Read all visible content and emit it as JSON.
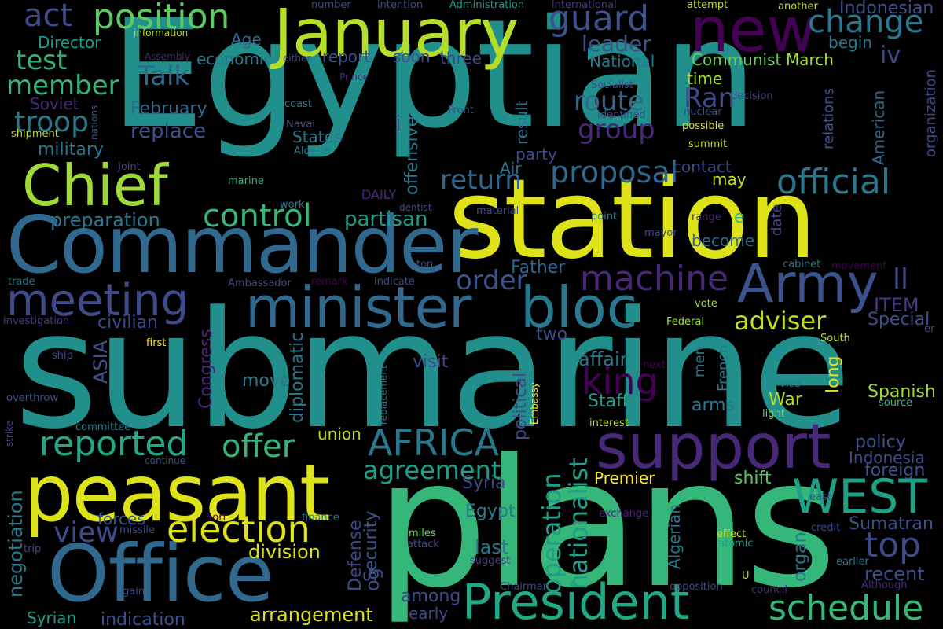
{
  "palette": {
    "background": "#000000",
    "teal": "#21908d",
    "blue": "#31688e",
    "indigo": "#443983",
    "purple": "#440154",
    "green": "#35b779",
    "lime": "#90d743",
    "yellow": "#fde725"
  },
  "words": [
    {
      "text": "Egyptian",
      "color": "#21908d"
    },
    {
      "text": "submarine",
      "color": "#21908d"
    },
    {
      "text": "plans",
      "color": "#35b779"
    },
    {
      "text": "station",
      "color": "#dde318"
    },
    {
      "text": "Commander",
      "color": "#31688e"
    },
    {
      "text": "Office",
      "color": "#31688e"
    },
    {
      "text": "peasant",
      "color": "#dde318"
    },
    {
      "text": "January",
      "color": "#b5de2b"
    },
    {
      "text": "minister",
      "color": "#31688e"
    },
    {
      "text": "bloc",
      "color": "#2a788e"
    },
    {
      "text": "new",
      "color": "#440154"
    },
    {
      "text": "President",
      "color": "#22a884"
    },
    {
      "text": "support",
      "color": "#482878"
    },
    {
      "text": "Chief",
      "color": "#a0da39"
    },
    {
      "text": "meeting",
      "color": "#3e4a89"
    },
    {
      "text": "Army",
      "color": "#3b528b"
    },
    {
      "text": "WEST",
      "color": "#1fa187"
    },
    {
      "text": "AFRICA",
      "color": "#2a788e"
    },
    {
      "text": "machine",
      "color": "#482878"
    },
    {
      "text": "election",
      "color": "#dde318"
    },
    {
      "text": "position",
      "color": "#5ec962"
    },
    {
      "text": "guard",
      "color": "#3b528b"
    },
    {
      "text": "change",
      "color": "#2a788e"
    },
    {
      "text": "official",
      "color": "#2a788e"
    },
    {
      "text": "control",
      "color": "#35b779"
    },
    {
      "text": "offer",
      "color": "#35b779"
    },
    {
      "text": "reported",
      "color": "#22a884"
    },
    {
      "text": "schedule",
      "color": "#35b779"
    },
    {
      "text": "top",
      "color": "#3e4a89"
    },
    {
      "text": "proposal",
      "color": "#31688e"
    },
    {
      "text": "king",
      "color": "#440154"
    },
    {
      "text": "return",
      "color": "#31688e"
    },
    {
      "text": "route",
      "color": "#31688e"
    },
    {
      "text": "group",
      "color": "#482878"
    },
    {
      "text": "view",
      "color": "#3e4a89"
    },
    {
      "text": "order",
      "color": "#3b528b"
    },
    {
      "text": "agreement",
      "color": "#1f9e89"
    },
    {
      "text": "act",
      "color": "#3e4a89"
    },
    {
      "text": "troop",
      "color": "#2a788e"
    },
    {
      "text": "member",
      "color": "#35b779"
    },
    {
      "text": "test",
      "color": "#35b779"
    },
    {
      "text": "Talk",
      "color": "#31688e"
    },
    {
      "text": "Ran",
      "color": "#3e4a89"
    },
    {
      "text": "leader",
      "color": "#3b528b"
    },
    {
      "text": "adviser",
      "color": "#bddf26"
    },
    {
      "text": "operation",
      "color": "#1f9e89"
    },
    {
      "text": "nationalist",
      "color": "#1f9e89"
    },
    {
      "text": "division",
      "color": "#dde318"
    },
    {
      "text": "arrangement",
      "color": "#dde318"
    },
    {
      "text": "negotiation",
      "color": "#2a788e"
    },
    {
      "text": "Father",
      "color": "#31688e"
    },
    {
      "text": "partisan",
      "color": "#1f9e89"
    },
    {
      "text": "preparation",
      "color": "#2a788e"
    },
    {
      "text": "replace",
      "color": "#3b528b"
    },
    {
      "text": "February",
      "color": "#31688e"
    },
    {
      "text": "military",
      "color": "#2a788e"
    },
    {
      "text": "economic",
      "color": "#2a788e"
    },
    {
      "text": "Indonesian",
      "color": "#3b528b"
    },
    {
      "text": "Director",
      "color": "#1f9e89"
    },
    {
      "text": "Age",
      "color": "#31688e"
    },
    {
      "text": "report",
      "color": "#3b528b"
    },
    {
      "text": "soon",
      "color": "#3b528b"
    },
    {
      "text": "three",
      "color": "#3e4a89"
    },
    {
      "text": "National",
      "color": "#2a788e"
    },
    {
      "text": "Communist",
      "color": "#6ece58"
    },
    {
      "text": "March",
      "color": "#a0da39"
    },
    {
      "text": "iv",
      "color": "#3e4a89"
    },
    {
      "text": "begin",
      "color": "#2a788e"
    },
    {
      "text": "time",
      "color": "#a0da39"
    },
    {
      "text": "ITEM",
      "color": "#443983"
    },
    {
      "text": "ll",
      "color": "#3e4a89"
    },
    {
      "text": "Special",
      "color": "#3b528b"
    },
    {
      "text": "long",
      "color": "#dde318"
    },
    {
      "text": "Spanish",
      "color": "#a0da39"
    },
    {
      "text": "policy",
      "color": "#3b528b"
    },
    {
      "text": "foreign",
      "color": "#3b528b"
    },
    {
      "text": "Indonesia",
      "color": "#3e4a89"
    },
    {
      "text": "recent",
      "color": "#3b528b"
    },
    {
      "text": "Sumatran",
      "color": "#3b528b"
    },
    {
      "text": "organ",
      "color": "#2a788e"
    },
    {
      "text": "shift",
      "color": "#5ec962"
    },
    {
      "text": "Premier",
      "color": "#fde725"
    },
    {
      "text": "Syria",
      "color": "#3e4a89"
    },
    {
      "text": "Egypt",
      "color": "#2a788e"
    },
    {
      "text": "last",
      "color": "#2a788e"
    },
    {
      "text": "among",
      "color": "#3e4a89"
    },
    {
      "text": "early",
      "color": "#3e4a89"
    },
    {
      "text": "visit",
      "color": "#3e4a89"
    },
    {
      "text": "two",
      "color": "#3e4a89"
    },
    {
      "text": "affair",
      "color": "#2a788e"
    },
    {
      "text": "move",
      "color": "#2a788e"
    },
    {
      "text": "civilian",
      "color": "#3e4a89"
    },
    {
      "text": "ASIA",
      "color": "#3b528b"
    },
    {
      "text": "Congress",
      "color": "#482878"
    },
    {
      "text": "diplomatic",
      "color": "#2a788e"
    },
    {
      "text": "political",
      "color": "#3e4a89"
    },
    {
      "text": "union",
      "color": "#bddf26"
    },
    {
      "text": "Staff",
      "color": "#1f9e89"
    },
    {
      "text": "arms",
      "color": "#2a788e"
    },
    {
      "text": "War",
      "color": "#b5de2b"
    },
    {
      "text": "Syrian",
      "color": "#1f9e89"
    },
    {
      "text": "indication",
      "color": "#3b528b"
    },
    {
      "text": "forces",
      "color": "#3b528b"
    },
    {
      "text": "Security",
      "color": "#3b528b"
    },
    {
      "text": "Defense",
      "color": "#3e4a89"
    },
    {
      "text": "og",
      "color": "#3e4a89"
    },
    {
      "text": "offensive",
      "color": "#2a788e"
    },
    {
      "text": "party",
      "color": "#3e4a89"
    },
    {
      "text": "Air",
      "color": "#2a788e"
    },
    {
      "text": "result",
      "color": "#2a788e"
    },
    {
      "text": "contact",
      "color": "#3e4a89"
    },
    {
      "text": "become",
      "color": "#31688e"
    },
    {
      "text": "may",
      "color": "#bddf26"
    },
    {
      "text": "date",
      "color": "#3e4a89"
    },
    {
      "text": "e",
      "color": "#35b779"
    },
    {
      "text": "American",
      "color": "#31688e"
    },
    {
      "text": "relations",
      "color": "#3b528b"
    },
    {
      "text": "organization",
      "color": "#3e4a89"
    },
    {
      "text": "Algerian",
      "color": "#2a788e"
    },
    {
      "text": "French",
      "color": "#2a788e"
    },
    {
      "text": "men",
      "color": "#2a788e"
    },
    {
      "text": "DAILY",
      "color": "#482878"
    },
    {
      "text": "States",
      "color": "#2a788e"
    },
    {
      "text": "j",
      "color": "#3e4a89"
    },
    {
      "text": "information",
      "color": "#bddf26"
    },
    {
      "text": "Assembly",
      "color": "#482878"
    },
    {
      "text": "either",
      "color": "#3e4a89"
    },
    {
      "text": "Prince",
      "color": "#482878"
    },
    {
      "text": "Socialist",
      "color": "#3e4a89"
    },
    {
      "text": "coast",
      "color": "#2a788e"
    },
    {
      "text": "Front",
      "color": "#3e4a89"
    },
    {
      "text": "Identified",
      "color": "#3e4a89"
    },
    {
      "text": "nuclear",
      "color": "#3e4a89"
    },
    {
      "text": "decision",
      "color": "#3e4a89"
    },
    {
      "text": "possible",
      "color": "#dde318"
    },
    {
      "text": "summit",
      "color": "#bddf26"
    },
    {
      "text": "Naval",
      "color": "#3e4a89"
    },
    {
      "text": "Algeria",
      "color": "#2a788e"
    },
    {
      "text": "nations",
      "color": "#3b528b"
    },
    {
      "text": "Soviet",
      "color": "#482878"
    },
    {
      "text": "shipment",
      "color": "#bddf26"
    },
    {
      "text": "Joint",
      "color": "#3e4a89"
    },
    {
      "text": "marine",
      "color": "#35b779"
    },
    {
      "text": "work",
      "color": "#2a788e"
    },
    {
      "text": "dentist",
      "color": "#3e4a89"
    },
    {
      "text": "material",
      "color": "#3e4a89"
    },
    {
      "text": "point",
      "color": "#2a788e"
    },
    {
      "text": "range",
      "color": "#482878"
    },
    {
      "text": "mayor",
      "color": "#3e4a89"
    },
    {
      "text": "ton",
      "color": "#3e4a89"
    },
    {
      "text": "indicate",
      "color": "#3e4a89"
    },
    {
      "text": "remark",
      "color": "#440154"
    },
    {
      "text": "Ambassador",
      "color": "#3e4a89"
    },
    {
      "text": "trade",
      "color": "#2a788e"
    },
    {
      "text": "investigation",
      "color": "#443983"
    },
    {
      "text": "cabinet",
      "color": "#2a788e"
    },
    {
      "text": "movement",
      "color": "#440154"
    },
    {
      "text": "vote",
      "color": "#a0da39"
    },
    {
      "text": "Federal",
      "color": "#a0da39"
    },
    {
      "text": "er",
      "color": "#3e4a89"
    },
    {
      "text": "South",
      "color": "#b5de2b"
    },
    {
      "text": "first",
      "color": "#fde725"
    },
    {
      "text": "ship",
      "color": "#3e4a89"
    },
    {
      "text": "next",
      "color": "#440154"
    },
    {
      "text": "overthrow",
      "color": "#3b528b"
    },
    {
      "text": "strike",
      "color": "#3e4a89"
    },
    {
      "text": "committee",
      "color": "#2a788e"
    },
    {
      "text": "continue",
      "color": "#3e4a89"
    },
    {
      "text": "replacement",
      "color": "#2a788e"
    },
    {
      "text": "Embassy",
      "color": "#fde725"
    },
    {
      "text": "interest",
      "color": "#b5de2b"
    },
    {
      "text": "vice",
      "color": "#2a788e"
    },
    {
      "text": "light",
      "color": "#6ece58"
    },
    {
      "text": "source",
      "color": "#35b779"
    },
    {
      "text": "east",
      "color": "#3b528b"
    },
    {
      "text": "credit",
      "color": "#3e4a89"
    },
    {
      "text": "effect",
      "color": "#bddf26"
    },
    {
      "text": "atomic",
      "color": "#1f9e89"
    },
    {
      "text": "exchange",
      "color": "#482878"
    },
    {
      "text": "finance",
      "color": "#2a788e"
    },
    {
      "text": "Sort",
      "color": "#440154"
    },
    {
      "text": "missile",
      "color": "#3e4a89"
    },
    {
      "text": "trip",
      "color": "#3e4a89"
    },
    {
      "text": "gain",
      "color": "#3e4a89"
    },
    {
      "text": "miles",
      "color": "#6ece58"
    },
    {
      "text": "attack",
      "color": "#3e4a89"
    },
    {
      "text": "suggest",
      "color": "#443983"
    },
    {
      "text": "Chairman",
      "color": "#3e4a89"
    },
    {
      "text": "opposition",
      "color": "#3e4a89"
    },
    {
      "text": "U",
      "color": "#bddf26"
    },
    {
      "text": "council",
      "color": "#482878"
    },
    {
      "text": "Although",
      "color": "#482878"
    },
    {
      "text": "earlier",
      "color": "#2a788e"
    },
    {
      "text": "number",
      "color": "#3e4a89"
    },
    {
      "text": "intention",
      "color": "#3e4a89"
    },
    {
      "text": "Administration",
      "color": "#1f9e89"
    },
    {
      "text": "international",
      "color": "#443983"
    },
    {
      "text": "attempt",
      "color": "#bddf26"
    },
    {
      "text": "another",
      "color": "#bddf26"
    }
  ]
}
